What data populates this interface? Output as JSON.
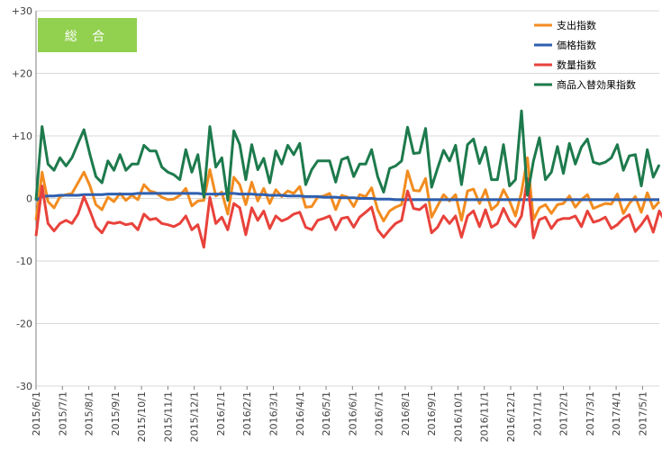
{
  "chart_data": {
    "type": "line",
    "badge": "総 合",
    "ylim": [
      -30,
      30
    ],
    "y_ticks": [
      30,
      20,
      10,
      0,
      -10,
      -20,
      -30
    ],
    "y_tick_labels": [
      "+30",
      "+20",
      "+10",
      "0",
      "-10",
      "-20",
      "-30"
    ],
    "x_tick_labels": [
      "2015/6/1",
      "2015/7/1",
      "2015/8/1",
      "2015/9/1",
      "2015/10/1",
      "2015/11/1",
      "2015/12/1",
      "2016/1/1",
      "2016/2/1",
      "2016/3/1",
      "2016/4/1",
      "2016/5/1",
      "2016/6/1",
      "2016/7/1",
      "2016/8/1",
      "2016/9/1",
      "2016/10/1",
      "2016/11/1",
      "2016/12/1",
      "2017/1/1",
      "2017/2/1",
      "2017/3/1",
      "2017/4/1",
      "2017/5/1"
    ],
    "grid": "horizontal",
    "legend_position": "top-right",
    "series": [
      {
        "name": "支出指数",
        "color": "#F28C1F",
        "values": [
          -3.5,
          4.2,
          -0.5,
          -1.5,
          0.3,
          0.6,
          0.8,
          2.5,
          4.2,
          2.0,
          -1.0,
          -1.8,
          0.2,
          -0.5,
          0.8,
          -0.3,
          0.5,
          -0.2,
          2.2,
          1.2,
          0.9,
          0.2,
          -0.2,
          -0.1,
          0.5,
          1.6,
          -1.2,
          -0.4,
          -0.3,
          4.6,
          0.4,
          1.0,
          -2.5,
          3.4,
          2.2,
          -1.0,
          2.6,
          -0.4,
          1.6,
          -0.8,
          1.4,
          0.3,
          1.2,
          0.8,
          1.9,
          -1.4,
          -1.3,
          0.2,
          0.4,
          0.8,
          -1.8,
          0.5,
          0.2,
          -1.3,
          0.6,
          0.3,
          1.7,
          -1.8,
          -3.6,
          -2.0,
          -1.4,
          -1.0,
          4.4,
          1.3,
          1.2,
          3.2,
          -3.0,
          -1.2,
          0.6,
          -0.4,
          0.6,
          -3.5,
          1.2,
          1.5,
          -0.8,
          1.4,
          -1.8,
          -1.0,
          1.4,
          -0.4,
          -2.8,
          1.0,
          6.5,
          -3.4,
          -1.5,
          -1.0,
          -2.4,
          -1.0,
          -0.8,
          0.4,
          -1.4,
          -0.2,
          0.6,
          -1.6,
          -1.2,
          -0.8,
          -0.9,
          0.7,
          -2.4,
          -0.8,
          0.3,
          -2.2,
          0.9,
          -1.6,
          -0.5
        ]
      },
      {
        "name": "価格指数",
        "color": "#2E5FB0",
        "values": [
          -0.3,
          0.3,
          0.4,
          0.4,
          0.5,
          0.5,
          0.5,
          0.5,
          0.6,
          0.6,
          0.6,
          0.6,
          0.7,
          0.7,
          0.7,
          0.7,
          0.7,
          0.8,
          0.8,
          0.8,
          0.8,
          0.8,
          0.8,
          0.8,
          0.8,
          0.8,
          0.8,
          0.8,
          0.7,
          0.7,
          0.7,
          0.7,
          0.8,
          0.8,
          0.7,
          0.7,
          0.7,
          0.6,
          0.6,
          0.5,
          0.5,
          0.5,
          0.4,
          0.4,
          0.4,
          0.3,
          0.3,
          0.3,
          0.2,
          0.2,
          0.2,
          0.1,
          0.1,
          0.1,
          0.0,
          0.0,
          0.0,
          -0.1,
          -0.1,
          -0.1,
          -0.2,
          -0.2,
          -0.2,
          -0.2,
          -0.2,
          -0.2,
          -0.2,
          -0.2,
          -0.2,
          -0.2,
          -0.2,
          -0.2,
          -0.2,
          -0.2,
          -0.2,
          -0.2,
          -0.2,
          -0.2,
          -0.2,
          -0.2,
          -0.2,
          -0.2,
          -0.2,
          -0.2,
          -0.2,
          -0.2,
          -0.2,
          -0.2,
          -0.2,
          -0.2,
          -0.2,
          -0.2,
          -0.2,
          -0.2,
          -0.2,
          -0.2,
          -0.2,
          -0.2,
          -0.2,
          -0.2,
          -0.2,
          -0.2,
          -0.2,
          -0.2,
          -0.2
        ]
      },
      {
        "name": "数量指数",
        "color": "#E8423B",
        "values": [
          -6.0,
          2.0,
          -4.0,
          -5.2,
          -4.0,
          -3.5,
          -4.0,
          -2.5,
          0.3,
          -2.0,
          -4.5,
          -5.5,
          -3.8,
          -4.0,
          -3.8,
          -4.2,
          -4.0,
          -5.0,
          -2.5,
          -3.4,
          -3.2,
          -4.0,
          -4.2,
          -4.5,
          -4.0,
          -2.8,
          -5.0,
          -4.2,
          -7.8,
          0.2,
          -4.0,
          -3.0,
          -5.0,
          -0.8,
          -1.5,
          -5.8,
          -1.5,
          -3.5,
          -2.0,
          -4.8,
          -2.8,
          -3.6,
          -3.2,
          -2.5,
          -2.2,
          -4.6,
          -5.0,
          -3.5,
          -3.2,
          -2.8,
          -5.0,
          -3.2,
          -3.0,
          -4.6,
          -3.0,
          -2.2,
          -1.4,
          -5.0,
          -6.2,
          -5.0,
          -4.0,
          -3.5,
          1.2,
          -1.6,
          -1.8,
          -1.0,
          -5.5,
          -4.6,
          -2.8,
          -4.0,
          -2.8,
          -6.2,
          -2.8,
          -2.0,
          -4.5,
          -1.8,
          -4.6,
          -4.0,
          -1.6,
          -3.6,
          -4.5,
          -2.8,
          3.2,
          -6.3,
          -3.4,
          -3.0,
          -4.8,
          -3.5,
          -3.2,
          -3.2,
          -2.8,
          -4.5,
          -2.0,
          -3.8,
          -3.5,
          -3.0,
          -4.8,
          -4.2,
          -3.2,
          -2.6,
          -5.3,
          -4.2,
          -2.8,
          -5.4,
          -2.0,
          -3.8,
          -2.5
        ]
      },
      {
        "name": "商品入替効果指数",
        "color": "#1D7A4C",
        "values": [
          -0.3,
          11.5,
          5.5,
          4.5,
          6.5,
          5.2,
          6.5,
          8.8,
          11.0,
          7.0,
          3.5,
          2.5,
          6.0,
          4.5,
          7.0,
          4.5,
          5.5,
          5.5,
          8.5,
          7.6,
          7.6,
          5.0,
          4.2,
          3.8,
          3.0,
          7.8,
          4.2,
          7.0,
          0.2,
          11.5,
          5.0,
          6.5,
          -0.3,
          10.8,
          8.6,
          3.0,
          8.6,
          4.6,
          6.4,
          2.5,
          7.6,
          5.5,
          8.5,
          7.0,
          8.8,
          2.2,
          4.6,
          6.0,
          6.0,
          6.0,
          2.6,
          6.2,
          6.6,
          3.5,
          5.5,
          5.5,
          7.8,
          3.5,
          1.0,
          4.8,
          5.2,
          6.0,
          11.4,
          7.2,
          7.3,
          11.2,
          1.8,
          4.8,
          7.7,
          6.0,
          8.5,
          2.2,
          8.6,
          9.5,
          5.6,
          8.2,
          3.0,
          3.0,
          8.6,
          2.0,
          3.0,
          14.0,
          0.5,
          6.0,
          9.7,
          3.0,
          4.2,
          8.3,
          4.0,
          8.8,
          5.5,
          8.2,
          9.5,
          5.8,
          5.5,
          5.8,
          6.5,
          8.6,
          4.5,
          6.8,
          7.0,
          2.0,
          7.8,
          3.4,
          5.4
        ]
      }
    ]
  },
  "colors": {
    "badge": "#92D050",
    "grid": "#D9D9D9",
    "axis": "#7F7F7F"
  }
}
